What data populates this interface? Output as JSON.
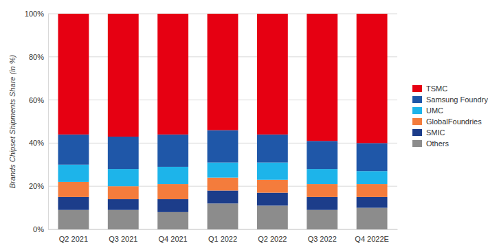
{
  "chart_data": {
    "type": "bar",
    "stacked": true,
    "y_label": "Brands Chipset Shipments Share (in %)",
    "categories": [
      "Q2 2021",
      "Q3 2021",
      "Q4 2021",
      "Q1 2022",
      "Q2 2022",
      "Q3 2022",
      "Q4 2022E"
    ],
    "series": [
      {
        "name": "TSMC",
        "color": "#e60012",
        "values": [
          56,
          57,
          56,
          54,
          56,
          59,
          60
        ]
      },
      {
        "name": "Samsung Foundry*",
        "color": "#1f57a8",
        "values": [
          14,
          15,
          15,
          15,
          13,
          13,
          13
        ]
      },
      {
        "name": "UMC",
        "color": "#1db4ea",
        "values": [
          8,
          8,
          8,
          7,
          8,
          7,
          6
        ]
      },
      {
        "name": "GlobalFoundries",
        "color": "#f47c3c",
        "values": [
          7,
          6,
          7,
          6,
          6,
          6,
          6
        ]
      },
      {
        "name": "SMIC",
        "color": "#1c3d8a",
        "values": [
          6,
          5,
          6,
          6,
          6,
          6,
          5
        ]
      },
      {
        "name": "Others",
        "color": "#8c8c8c",
        "values": [
          9,
          9,
          8,
          12,
          11,
          9,
          10
        ]
      }
    ],
    "ylim": [
      0,
      100
    ],
    "yticks": [
      {
        "value": 0,
        "label": "0%"
      },
      {
        "value": 20,
        "label": "20%"
      },
      {
        "value": 40,
        "label": "40%"
      },
      {
        "value": 60,
        "label": "60%"
      },
      {
        "value": 80,
        "label": "80%"
      },
      {
        "value": 100,
        "label": "100%"
      }
    ],
    "grid": true,
    "legend": "right"
  }
}
